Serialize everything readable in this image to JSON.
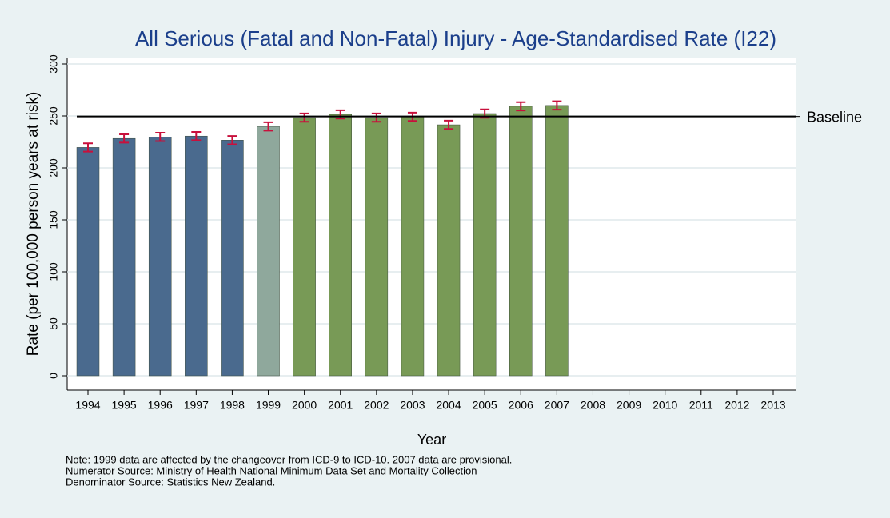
{
  "chart_data": {
    "type": "bar",
    "title": "All Serious (Fatal and Non-Fatal) Injury - Age-Standardised Rate (I22)",
    "xlabel": "Year",
    "ylabel": "Rate (per 100,000 person years at risk)",
    "categories": [
      "1994",
      "1995",
      "1996",
      "1997",
      "1998",
      "1999",
      "2000",
      "2001",
      "2002",
      "2003",
      "2004",
      "2005",
      "2006",
      "2007",
      "2008",
      "2009",
      "2010",
      "2011",
      "2012",
      "2013"
    ],
    "values": [
      219.7,
      228.3,
      229.8,
      230.6,
      226.7,
      239.9,
      248.4,
      251.5,
      248.4,
      249.2,
      241.5,
      252.3,
      259.3,
      260.1,
      null,
      null,
      null,
      null,
      null,
      null
    ],
    "errors": [
      4,
      4,
      4,
      4,
      4,
      4,
      4,
      4,
      4,
      4,
      4,
      4,
      4,
      4,
      null,
      null,
      null,
      null,
      null,
      null
    ],
    "colors": [
      "#4a6a8e",
      "#4a6a8e",
      "#4a6a8e",
      "#4a6a8e",
      "#4a6a8e",
      "#8fa89c",
      "#789a56",
      "#789a56",
      "#789a56",
      "#789a56",
      "#789a56",
      "#789a56",
      "#789a56",
      "#789a56",
      "#789a56",
      "#789a56",
      "#789a56",
      "#789a56",
      "#789a56",
      "#789a56"
    ],
    "error_color": "#c8103c",
    "baseline": {
      "label": "Baseline",
      "value": 249.5
    },
    "ylim": [
      0,
      300
    ],
    "yticks": [
      0,
      50,
      100,
      150,
      200,
      250,
      300
    ],
    "grid": true,
    "notes": [
      "Note: 1999 data are affected by the changeover from ICD-9 to ICD-10. 2007 data are provisional.",
      "Numerator Source: Ministry of Health National Minimum Data Set and Mortality Collection",
      "Denominator Source: Statistics New Zealand."
    ]
  }
}
